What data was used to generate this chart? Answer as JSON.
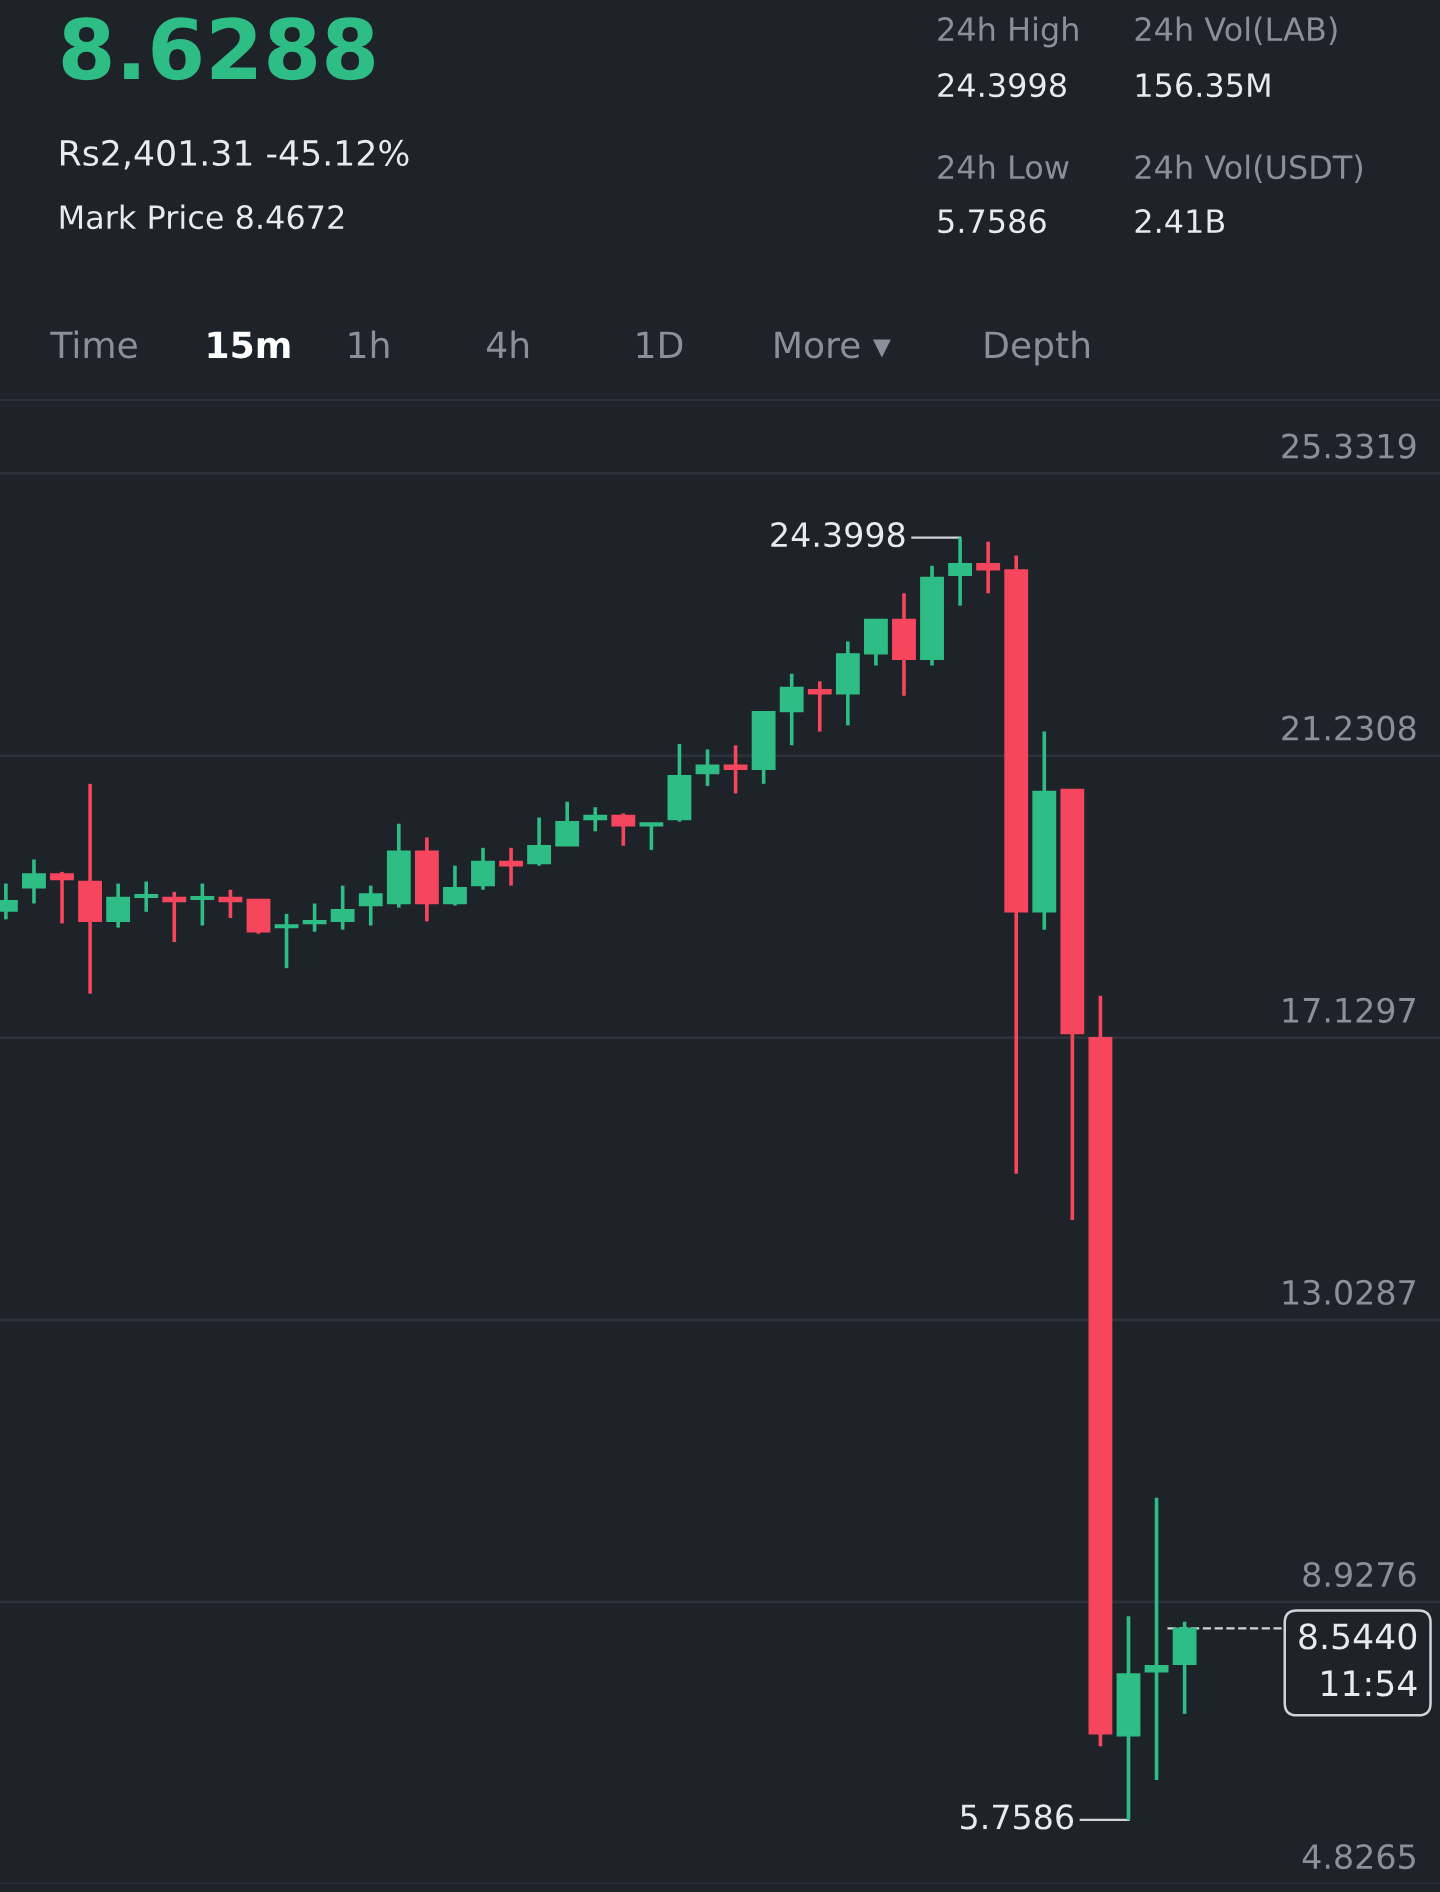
{
  "chart_data": {
    "type": "candlestick",
    "title": "8.6288",
    "subtitle": "Rs2,401.31 -45.12%",
    "categories": [
      null,
      null,
      null,
      null,
      null,
      null,
      null,
      null,
      null,
      null,
      null,
      null,
      null,
      null,
      null,
      null,
      null,
      null,
      null,
      null,
      null,
      null,
      null,
      null,
      null,
      null,
      null,
      null,
      null,
      null,
      null,
      null,
      null,
      null,
      null,
      null,
      null,
      null,
      null,
      null,
      null,
      null,
      null
    ],
    "ohlc": [
      [
        18.97,
        19.37,
        18.85,
        19.12
      ],
      [
        19.31,
        19.72,
        19.08,
        19.51
      ],
      [
        19.51,
        19.54,
        18.79,
        19.43
      ],
      [
        19.4,
        20.82,
        17.77,
        18.82
      ],
      [
        18.82,
        19.37,
        18.73,
        19.17
      ],
      [
        19.17,
        19.4,
        18.96,
        19.2
      ],
      [
        19.17,
        19.25,
        18.52,
        19.11
      ],
      [
        19.14,
        19.37,
        18.76,
        19.17
      ],
      [
        19.17,
        19.28,
        18.87,
        19.11
      ],
      [
        19.14,
        19.14,
        18.64,
        18.67
      ],
      [
        18.73,
        18.93,
        18.14,
        18.76
      ],
      [
        18.79,
        19.08,
        18.67,
        18.82
      ],
      [
        18.82,
        19.34,
        18.7,
        18.99
      ],
      [
        19.05,
        19.34,
        18.76,
        19.22
      ],
      [
        19.08,
        20.24,
        19.02,
        19.84
      ],
      [
        19.84,
        20.04,
        18.82,
        19.08
      ],
      [
        19.08,
        19.63,
        19.05,
        19.31
      ],
      [
        19.34,
        19.89,
        19.28,
        19.69
      ],
      [
        19.69,
        19.89,
        19.34,
        19.63
      ],
      [
        19.66,
        20.33,
        19.63,
        19.92
      ],
      [
        19.92,
        20.56,
        19.92,
        20.27
      ],
      [
        20.3,
        20.48,
        20.13,
        20.36
      ],
      [
        20.36,
        20.39,
        19.92,
        20.21
      ],
      [
        20.21,
        20.24,
        19.86,
        20.24
      ],
      [
        20.3,
        21.4,
        20.27,
        20.94
      ],
      [
        20.97,
        21.32,
        20.79,
        21.09
      ],
      [
        21.09,
        21.38,
        20.68,
        21.03
      ],
      [
        21.03,
        21.87,
        20.82,
        21.87
      ],
      [
        21.87,
        22.42,
        21.38,
        22.22
      ],
      [
        22.19,
        22.31,
        21.58,
        22.13
      ],
      [
        22.13,
        22.89,
        21.67,
        22.71
      ],
      [
        22.71,
        23.21,
        22.54,
        23.21
      ],
      [
        23.21,
        23.59,
        22.1,
        22.63
      ],
      [
        22.63,
        23.99,
        22.54,
        23.82
      ],
      [
        23.85,
        24.3998,
        23.41,
        24.02
      ],
      [
        24.02,
        24.34,
        23.59,
        23.93
      ],
      [
        23.93,
        24.14,
        15.15,
        18.96
      ],
      [
        18.96,
        21.58,
        18.7,
        20.71
      ],
      [
        20.74,
        20.74,
        14.48,
        17.19
      ],
      [
        17.13,
        17.74,
        6.83,
        7.01
      ],
      [
        6.98,
        8.72,
        5.7586,
        7.88
      ],
      [
        7.91,
        10.44,
        6.34,
        8.0
      ],
      [
        8.02,
        8.64,
        7.3,
        8.544
      ]
    ],
    "colors": [
      "#2ebd85",
      "#2ebd85",
      "#f6465d",
      "#f6465d",
      "#2ebd85",
      "#2ebd85",
      "#f6465d",
      "#2ebd85",
      "#f6465d",
      "#f6465d",
      "#2ebd85",
      "#2ebd85",
      "#2ebd85",
      "#2ebd85",
      "#2ebd85",
      "#f6465d",
      "#2ebd85",
      "#2ebd85",
      "#f6465d",
      "#2ebd85",
      "#2ebd85",
      "#2ebd85",
      "#f6465d",
      "#2ebd85",
      "#2ebd85",
      "#2ebd85",
      "#f6465d",
      "#2ebd85",
      "#2ebd85",
      "#f6465d",
      "#2ebd85",
      "#2ebd85",
      "#f6465d",
      "#2ebd85",
      "#2ebd85",
      "#f6465d",
      "#f6465d",
      "#2ebd85",
      "#f6465d",
      "#f6465d",
      "#2ebd85",
      "#2ebd85",
      "#2ebd85"
    ],
    "ylim": [
      4.8265,
      26.4
    ],
    "yticks": [
      4.8265,
      8.9276,
      13.0287,
      17.1297,
      21.2308,
      25.3319
    ],
    "grid": "y",
    "ref_lines": [
      {
        "axis": "y",
        "value": 8.544,
        "label": "8.5440\n11:54",
        "line_style": "dashed",
        "color": "#cfd3da"
      }
    ],
    "annotations": [
      "Mark Price 8.4672",
      "24h High",
      "24.3998",
      "24h Low",
      "5.7586",
      "24h Vol(LAB)",
      "156.35M",
      "24h Vol(USDT)",
      "2.41B",
      "Time",
      "15m",
      "1h",
      "4h",
      "1D",
      "More ▾",
      "Depth",
      "24.3998",
      "5.7586"
    ]
  }
}
